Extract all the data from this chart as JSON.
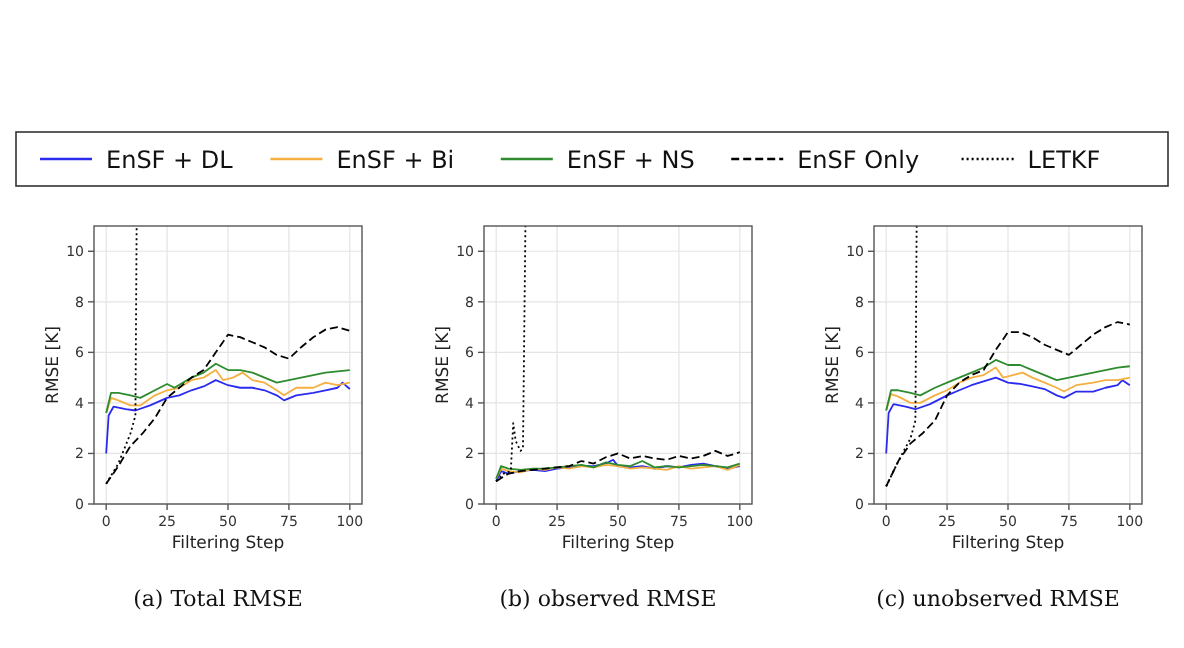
{
  "chart_data": [
    {
      "type": "line",
      "title": "(a) Total RMSE",
      "xlabel": "Filtering Step",
      "ylabel": "RMSE [K]",
      "xlim": [
        -5,
        105
      ],
      "ylim": [
        0,
        11
      ],
      "xticks": [
        0,
        25,
        50,
        75,
        100
      ],
      "yticks": [
        0,
        2,
        4,
        6,
        8,
        10
      ],
      "grid": true,
      "legend": "top",
      "marker": "none",
      "series": [
        {
          "name": "EnSF + DL",
          "color": "#2b2bf0",
          "line_style": "solid",
          "x": [
            0,
            1,
            3,
            8,
            12,
            18,
            25,
            30,
            35,
            40,
            45,
            50,
            55,
            60,
            65,
            70,
            73,
            78,
            85,
            90,
            95,
            97,
            100
          ],
          "values": [
            2.0,
            3.5,
            3.85,
            3.75,
            3.7,
            3.9,
            4.2,
            4.3,
            4.5,
            4.65,
            4.9,
            4.7,
            4.6,
            4.6,
            4.5,
            4.3,
            4.1,
            4.3,
            4.4,
            4.5,
            4.6,
            4.8,
            4.55
          ]
        },
        {
          "name": "EnSF + Bi",
          "color": "#f5b041",
          "line_style": "solid",
          "x": [
            0,
            2,
            5,
            10,
            14,
            20,
            25,
            30,
            35,
            40,
            45,
            48,
            52,
            56,
            60,
            65,
            70,
            73,
            78,
            85,
            90,
            95,
            100
          ],
          "values": [
            3.6,
            4.2,
            4.1,
            3.9,
            3.9,
            4.3,
            4.5,
            4.6,
            4.9,
            5.0,
            5.3,
            4.9,
            5.0,
            5.2,
            4.9,
            4.8,
            4.5,
            4.3,
            4.6,
            4.6,
            4.8,
            4.7,
            4.8
          ]
        },
        {
          "name": "EnSF + NS",
          "color": "#2e8b2e",
          "line_style": "solid",
          "x": [
            0,
            2,
            5,
            10,
            14,
            20,
            25,
            28,
            35,
            40,
            45,
            50,
            55,
            60,
            65,
            70,
            75,
            80,
            85,
            90,
            95,
            100
          ],
          "values": [
            3.6,
            4.4,
            4.4,
            4.3,
            4.2,
            4.5,
            4.75,
            4.6,
            5.0,
            5.2,
            5.55,
            5.3,
            5.3,
            5.2,
            5.0,
            4.8,
            4.9,
            5.0,
            5.1,
            5.2,
            5.25,
            5.3
          ]
        },
        {
          "name": "EnSF Only",
          "color": "#000000",
          "line_style": "dashed",
          "x": [
            0,
            5,
            10,
            15,
            20,
            25,
            30,
            35,
            40,
            45,
            50,
            55,
            60,
            65,
            70,
            75,
            80,
            85,
            90,
            95,
            100
          ],
          "values": [
            0.8,
            1.5,
            2.3,
            2.8,
            3.4,
            4.2,
            4.6,
            5.0,
            5.3,
            6.0,
            6.7,
            6.6,
            6.4,
            6.2,
            5.9,
            5.75,
            6.2,
            6.6,
            6.9,
            7.0,
            6.85
          ]
        },
        {
          "name": "LETKF",
          "color": "#000000",
          "line_style": "dotted",
          "x": [
            0,
            5,
            10,
            12,
            12.5
          ],
          "values": [
            0.8,
            1.6,
            2.8,
            3.5,
            11
          ]
        }
      ]
    },
    {
      "type": "line",
      "title": "(b) observed RMSE",
      "xlabel": "Filtering Step",
      "ylabel": "RMSE [K]",
      "xlim": [
        -5,
        105
      ],
      "ylim": [
        0,
        11
      ],
      "xticks": [
        0,
        25,
        50,
        75,
        100
      ],
      "yticks": [
        0,
        2,
        4,
        6,
        8,
        10
      ],
      "grid": true,
      "marker": "none",
      "series": [
        {
          "color": "#2b2bf0",
          "line_style": "solid",
          "x": [
            0,
            2,
            5,
            10,
            15,
            20,
            25,
            30,
            35,
            40,
            45,
            48,
            50,
            55,
            60,
            65,
            70,
            75,
            80,
            85,
            90,
            95,
            100
          ],
          "values": [
            0.9,
            1.3,
            1.2,
            1.3,
            1.35,
            1.3,
            1.4,
            1.45,
            1.5,
            1.5,
            1.6,
            1.75,
            1.5,
            1.45,
            1.5,
            1.4,
            1.5,
            1.45,
            1.55,
            1.6,
            1.5,
            1.4,
            1.5
          ]
        },
        {
          "color": "#f5b041",
          "line_style": "solid",
          "x": [
            0,
            2,
            5,
            10,
            15,
            20,
            25,
            30,
            35,
            40,
            45,
            50,
            55,
            60,
            65,
            70,
            75,
            80,
            85,
            90,
            95,
            100
          ],
          "values": [
            1.0,
            1.4,
            1.3,
            1.25,
            1.4,
            1.35,
            1.45,
            1.4,
            1.5,
            1.45,
            1.55,
            1.5,
            1.4,
            1.45,
            1.4,
            1.35,
            1.5,
            1.4,
            1.45,
            1.5,
            1.35,
            1.55
          ]
        },
        {
          "color": "#2e8b2e",
          "line_style": "solid",
          "x": [
            0,
            2,
            5,
            10,
            15,
            20,
            25,
            30,
            35,
            40,
            45,
            50,
            55,
            60,
            65,
            70,
            75,
            80,
            85,
            90,
            95,
            100
          ],
          "values": [
            1.0,
            1.5,
            1.4,
            1.35,
            1.4,
            1.4,
            1.45,
            1.5,
            1.55,
            1.45,
            1.65,
            1.55,
            1.5,
            1.7,
            1.45,
            1.5,
            1.45,
            1.5,
            1.55,
            1.5,
            1.45,
            1.6
          ]
        },
        {
          "color": "#000000",
          "line_style": "dashed",
          "x": [
            0,
            5,
            10,
            15,
            20,
            25,
            30,
            35,
            40,
            45,
            50,
            55,
            60,
            65,
            70,
            75,
            80,
            85,
            90,
            95,
            100
          ],
          "values": [
            0.9,
            1.2,
            1.3,
            1.35,
            1.4,
            1.45,
            1.5,
            1.7,
            1.6,
            1.85,
            2.0,
            1.8,
            1.9,
            1.8,
            1.75,
            1.9,
            1.8,
            1.9,
            2.1,
            1.9,
            2.05
          ]
        },
        {
          "color": "#000000",
          "line_style": "dotted",
          "x": [
            0,
            3,
            6,
            7,
            8,
            10,
            11,
            12
          ],
          "values": [
            0.9,
            1.2,
            1.3,
            3.2,
            2.5,
            2.1,
            2.2,
            11
          ]
        }
      ]
    },
    {
      "type": "line",
      "title": "(c) unobserved RMSE",
      "xlabel": "Filtering Step",
      "ylabel": "RMSE [K]",
      "xlim": [
        -5,
        105
      ],
      "ylim": [
        0,
        11
      ],
      "xticks": [
        0,
        25,
        50,
        75,
        100
      ],
      "yticks": [
        0,
        2,
        4,
        6,
        8,
        10
      ],
      "grid": true,
      "marker": "none",
      "series": [
        {
          "color": "#2b2bf0",
          "line_style": "solid",
          "x": [
            0,
            1,
            3,
            8,
            12,
            18,
            25,
            30,
            35,
            40,
            45,
            50,
            55,
            60,
            65,
            70,
            73,
            78,
            85,
            90,
            95,
            97,
            100
          ],
          "values": [
            2.0,
            3.6,
            3.95,
            3.85,
            3.75,
            3.95,
            4.3,
            4.5,
            4.7,
            4.85,
            5.0,
            4.8,
            4.75,
            4.65,
            4.55,
            4.3,
            4.2,
            4.45,
            4.45,
            4.6,
            4.7,
            4.9,
            4.7
          ]
        },
        {
          "color": "#f5b041",
          "line_style": "solid",
          "x": [
            0,
            2,
            5,
            10,
            14,
            20,
            25,
            30,
            35,
            40,
            45,
            48,
            52,
            56,
            60,
            65,
            70,
            73,
            78,
            85,
            90,
            95,
            100
          ],
          "values": [
            3.7,
            4.35,
            4.25,
            4.0,
            4.0,
            4.3,
            4.5,
            4.8,
            5.0,
            5.1,
            5.4,
            5.0,
            5.1,
            5.2,
            5.0,
            4.8,
            4.6,
            4.45,
            4.7,
            4.8,
            4.9,
            4.9,
            5.0
          ]
        },
        {
          "color": "#2e8b2e",
          "line_style": "solid",
          "x": [
            0,
            2,
            5,
            10,
            14,
            20,
            25,
            30,
            35,
            40,
            45,
            50,
            55,
            60,
            65,
            70,
            75,
            80,
            85,
            90,
            95,
            100
          ],
          "values": [
            3.7,
            4.5,
            4.5,
            4.4,
            4.3,
            4.6,
            4.8,
            5.0,
            5.2,
            5.4,
            5.7,
            5.5,
            5.5,
            5.3,
            5.1,
            4.9,
            5.0,
            5.1,
            5.2,
            5.3,
            5.4,
            5.45
          ]
        },
        {
          "color": "#000000",
          "line_style": "dashed",
          "x": [
            0,
            5,
            10,
            15,
            20,
            25,
            30,
            35,
            40,
            45,
            50,
            55,
            60,
            65,
            70,
            75,
            80,
            85,
            90,
            95,
            100
          ],
          "values": [
            0.7,
            1.7,
            2.4,
            2.8,
            3.3,
            4.3,
            4.8,
            5.1,
            5.3,
            6.1,
            6.8,
            6.8,
            6.6,
            6.3,
            6.1,
            5.9,
            6.3,
            6.7,
            7.0,
            7.2,
            7.1
          ]
        },
        {
          "color": "#000000",
          "line_style": "dotted",
          "x": [
            0,
            5,
            10,
            12,
            12.5
          ],
          "values": [
            0.7,
            1.7,
            2.6,
            3.3,
            11
          ]
        }
      ]
    }
  ]
}
